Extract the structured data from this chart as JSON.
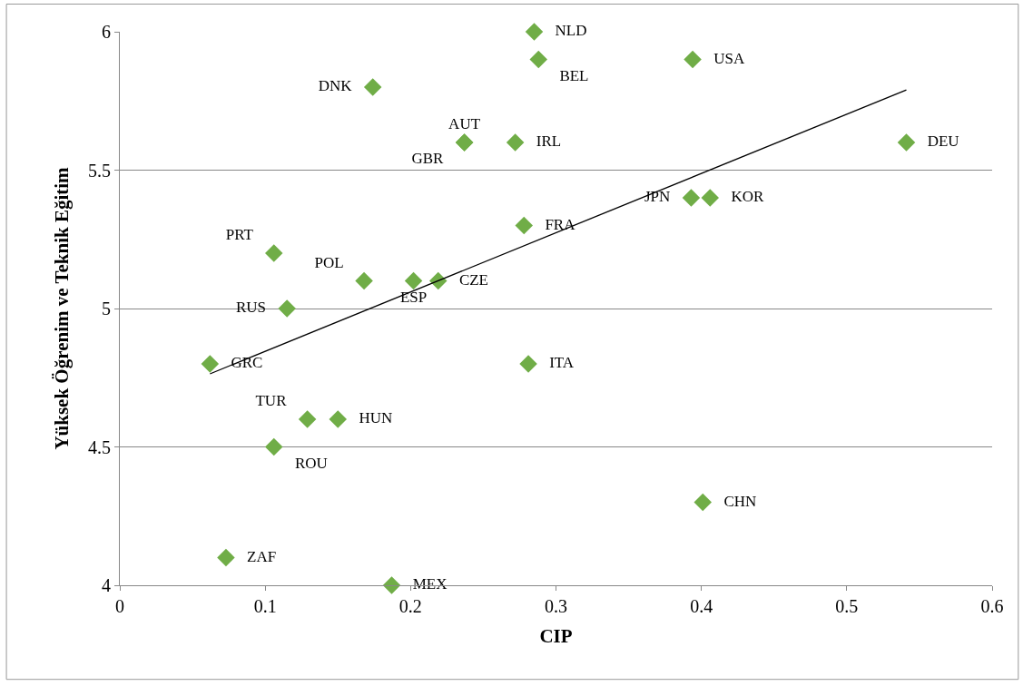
{
  "chart_data": {
    "type": "scatter",
    "xlabel": "CIP",
    "ylabel": "Yüksek Öğrenim ve Teknik Eğitim",
    "xlim": [
      0,
      0.6
    ],
    "xticks": [
      0,
      0.1,
      0.2,
      0.3,
      0.4,
      0.5,
      0.6
    ],
    "ylim": [
      4,
      6
    ],
    "yticks": [
      4,
      4.5,
      5,
      5.5,
      6
    ],
    "grid": "y",
    "marker": "diamond",
    "series": [
      {
        "color": "#70ad47",
        "x": [
          0.285,
          0.288,
          0.394,
          0.174,
          0.237,
          0.237,
          0.272,
          0.541,
          0.393,
          0.406,
          0.278,
          0.106,
          0.168,
          0.202,
          0.219,
          0.115,
          0.062,
          0.281,
          0.129,
          0.15,
          0.106,
          0.401,
          0.073,
          0.187
        ],
        "values": [
          6.0,
          5.9,
          5.9,
          5.8,
          5.6,
          5.6,
          5.6,
          5.6,
          5.4,
          5.4,
          5.3,
          5.2,
          5.1,
          5.1,
          5.1,
          5.0,
          4.8,
          4.8,
          4.6,
          4.6,
          4.5,
          4.3,
          4.1,
          4.0
        ],
        "value_labels": [
          "NLD",
          "BEL",
          "USA",
          "DNK",
          "AUT",
          "GBR",
          "IRL",
          "DEU",
          "JPN",
          "KOR",
          "FRA",
          "PRT",
          "POL",
          "ESP",
          "CZE",
          "RUS",
          "GRC",
          "ITA",
          "TUR",
          "HUN",
          "ROU",
          "CHN",
          "ZAF",
          "MEX"
        ]
      },
      {
        "type": "line",
        "color": "#000000",
        "line_style": "solid",
        "marker": "none",
        "x": [
          0.062,
          0.541
        ],
        "values": [
          4.764,
          5.79
        ]
      }
    ]
  }
}
